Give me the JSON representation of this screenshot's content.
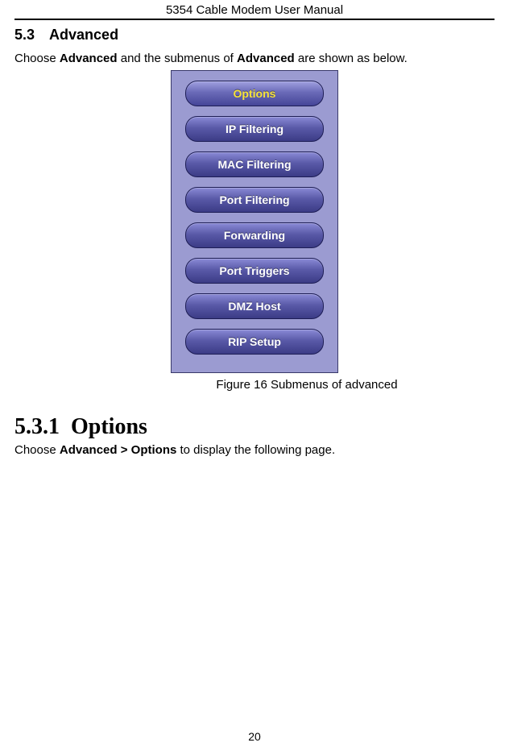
{
  "header": {
    "title": "5354 Cable Modem User Manual"
  },
  "section1": {
    "number": "5.3",
    "title": "Advanced",
    "intro_pre": "Choose ",
    "intro_bold1": "Advanced",
    "intro_mid": " and the submenus of ",
    "intro_bold2": "Advanced",
    "intro_post": " are shown as below."
  },
  "menu": {
    "background": "#9b9bd1",
    "items": [
      {
        "label": "Options",
        "active": true
      },
      {
        "label": "IP Filtering",
        "active": false
      },
      {
        "label": "MAC Filtering",
        "active": false
      },
      {
        "label": "Port Filtering",
        "active": false
      },
      {
        "label": "Forwarding",
        "active": false
      },
      {
        "label": "Port Triggers",
        "active": false
      },
      {
        "label": "DMZ Host",
        "active": false
      },
      {
        "label": "RIP Setup",
        "active": false
      }
    ]
  },
  "figure_caption": "Figure 16 Submenus of advanced",
  "section2": {
    "number": "5.3.1",
    "title": "Options",
    "intro_pre": "Choose ",
    "intro_bold": "Advanced > Options",
    "intro_post": " to display the following page."
  },
  "page_number": "20"
}
